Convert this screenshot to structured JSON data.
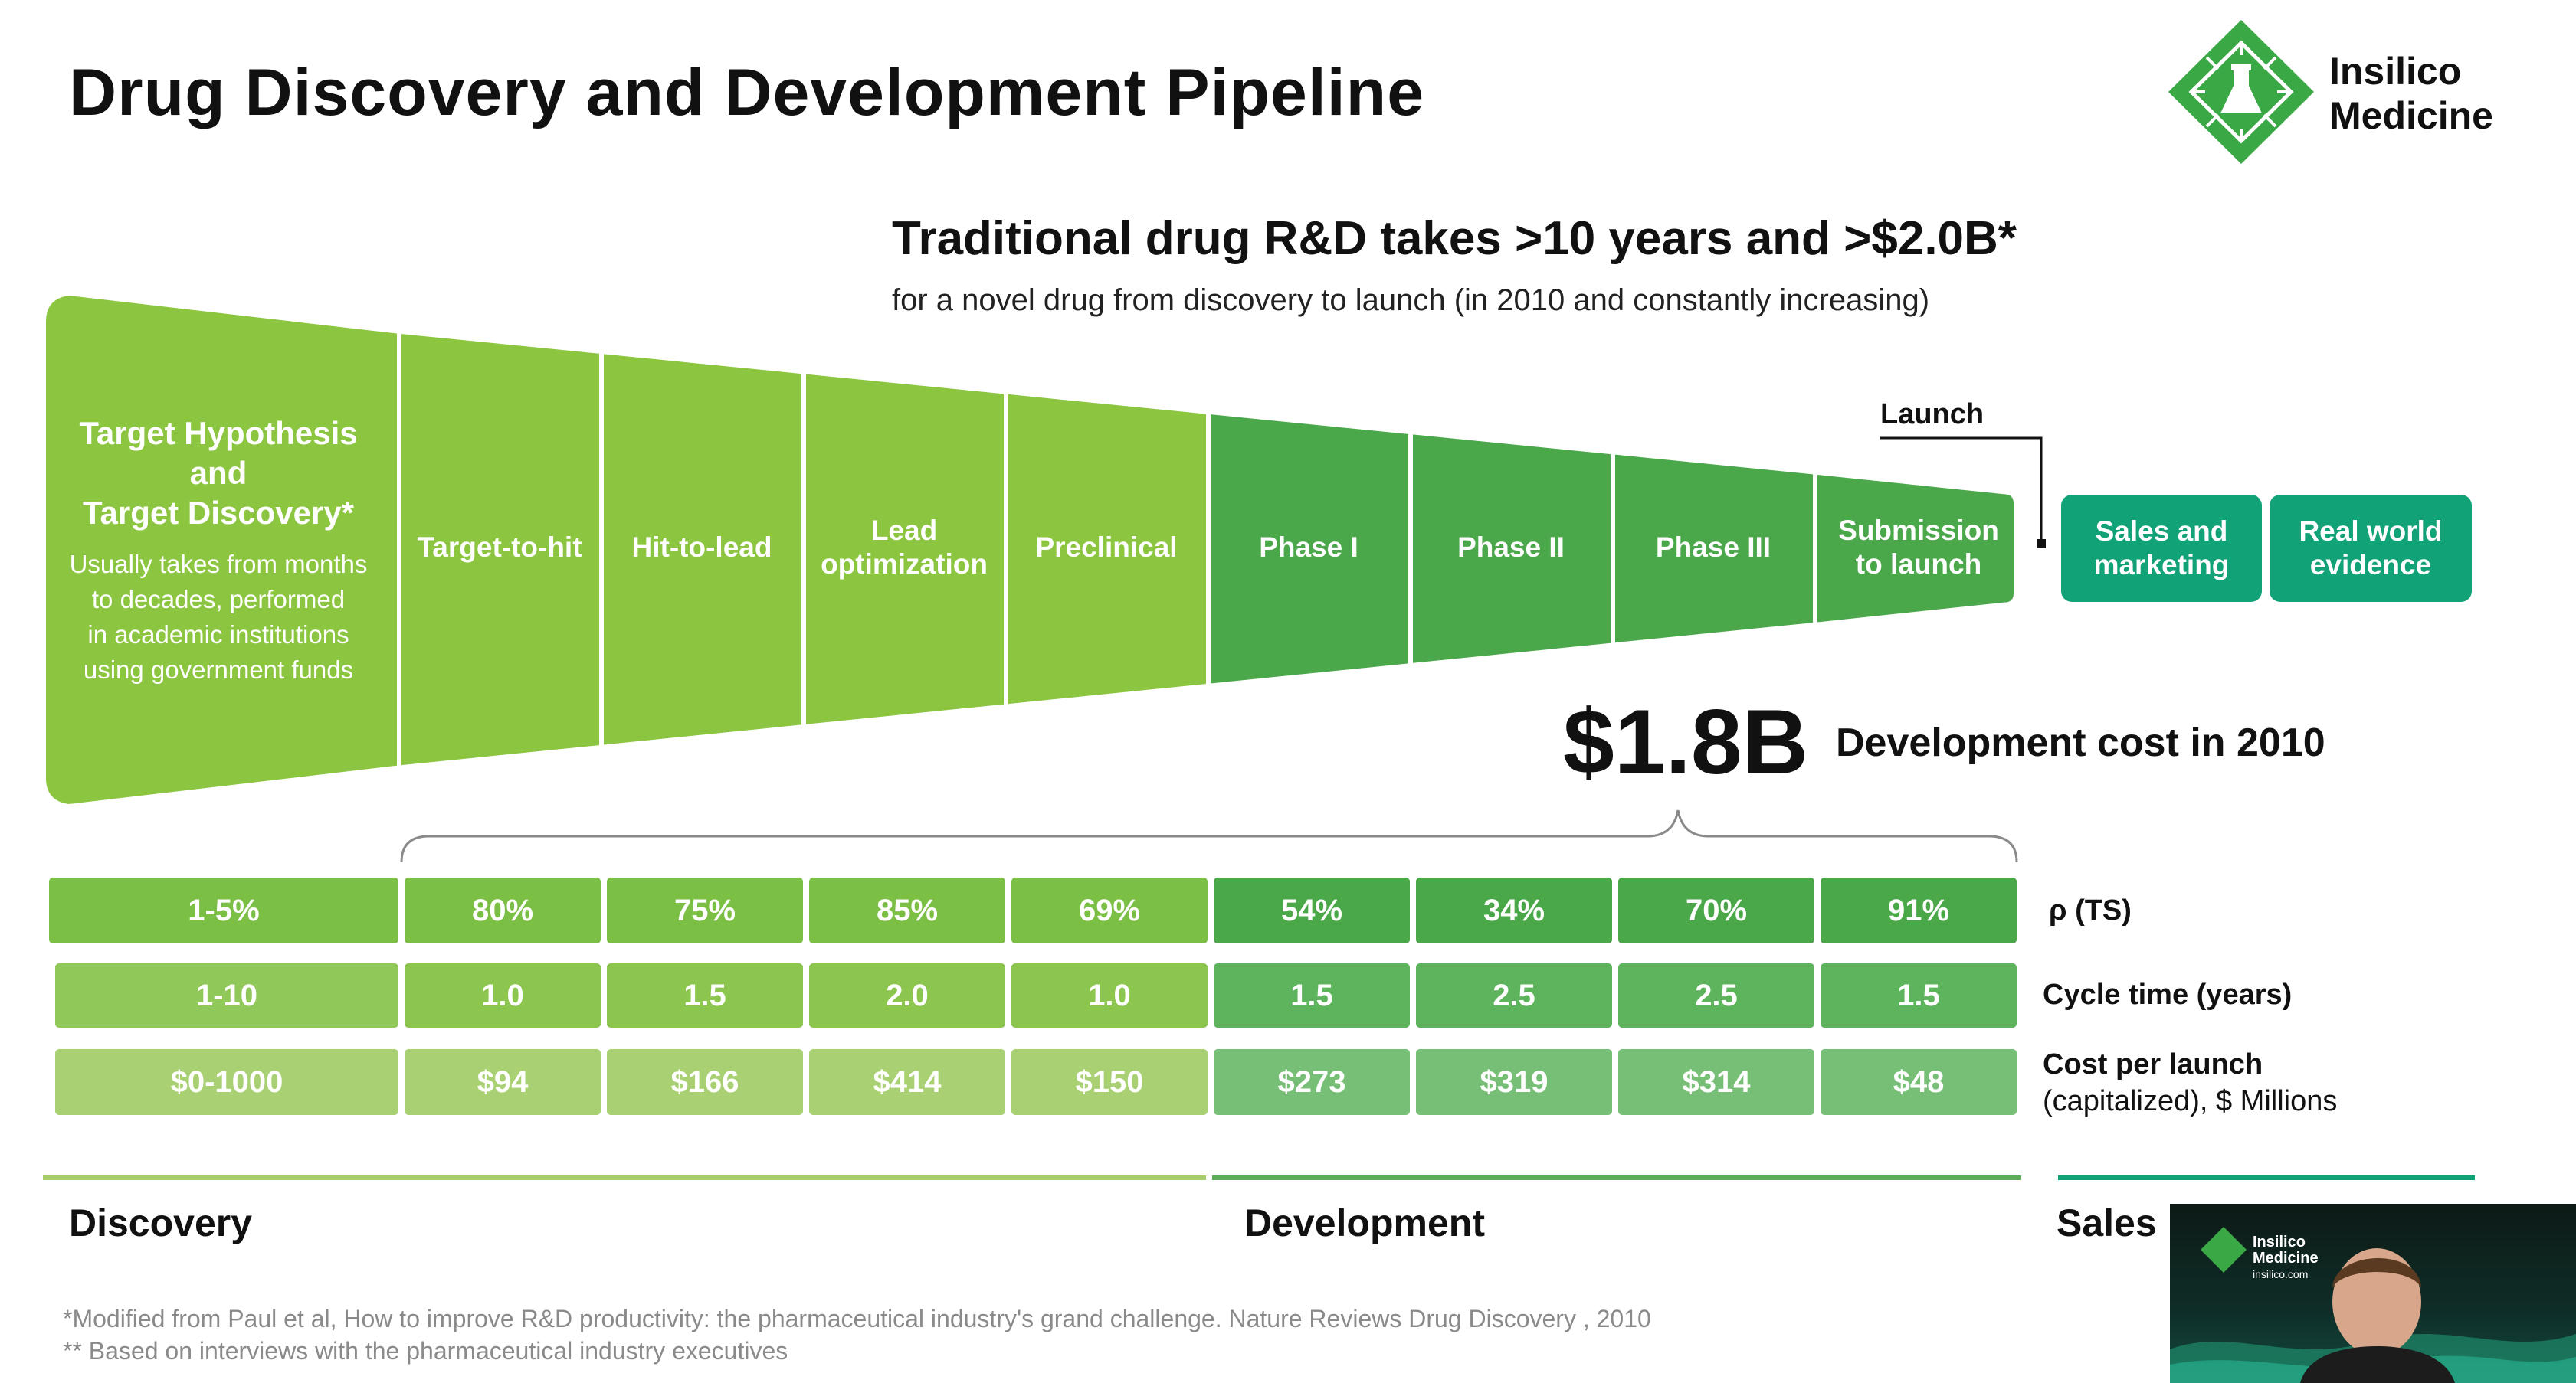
{
  "title": "Drug Discovery and Development Pipeline",
  "logo": {
    "name": "Insilico Medicine",
    "line1": "Insilico",
    "line2": "Medicine",
    "icon": "flask-chip-icon",
    "color": "#3aa845"
  },
  "headline": "Traditional drug R&D takes >10 years and >$2.0B*",
  "subheadline": "for a novel drug from discovery to launch (in 2010 and constantly increasing)",
  "funnel": {
    "first_stage": {
      "title_lines": [
        "Target Hypothesis",
        "and",
        "Target Discovery*"
      ],
      "desc_lines": [
        "Usually takes from months",
        "to decades, performed",
        "in academic institutions",
        "using government funds"
      ]
    },
    "stages": [
      {
        "lines": [
          "Target-to-hit"
        ]
      },
      {
        "lines": [
          "Hit-to-lead"
        ]
      },
      {
        "lines": [
          "Lead",
          "optimization"
        ]
      },
      {
        "lines": [
          "Preclinical"
        ]
      },
      {
        "lines": [
          "Phase I"
        ]
      },
      {
        "lines": [
          "Phase II"
        ]
      },
      {
        "lines": [
          "Phase III"
        ]
      },
      {
        "lines": [
          "Submission",
          "to launch"
        ]
      }
    ],
    "launch_label": "Launch",
    "post_launch": [
      {
        "lines": [
          "Sales and",
          "marketing"
        ]
      },
      {
        "lines": [
          "Real world",
          "evidence"
        ]
      }
    ],
    "colors": {
      "discovery": "#8cc640",
      "development": "#4ba84a",
      "sales": "#12a278"
    }
  },
  "cost": {
    "value": "$1.8B",
    "label": "Development cost in 2010"
  },
  "table": {
    "rows": [
      {
        "key": "pts",
        "label_bold": "ρ (TS)",
        "label_normal": "",
        "first": "1-5%",
        "values": [
          "80%",
          "75%",
          "85%",
          "69%",
          "54%",
          "34%",
          "70%",
          "91%"
        ]
      },
      {
        "key": "cycle",
        "label_bold": "Cycle time (years)",
        "label_normal": "",
        "first": "1-10",
        "values": [
          "1.0",
          "1.5",
          "2.0",
          "1.0",
          "1.5",
          "2.5",
          "2.5",
          "1.5"
        ]
      },
      {
        "key": "cost",
        "label_bold": "Cost per launch",
        "label_normal": "(capitalized), $ Millions",
        "first": "$0-1000",
        "values": [
          "$94",
          "$166",
          "$414",
          "$150",
          "$273",
          "$319",
          "$314",
          "$48"
        ]
      }
    ]
  },
  "sections": [
    "Discovery",
    "Development",
    "Sales"
  ],
  "footnotes": [
    "*Modified from Paul et al, How to improve R&D productivity: the pharmaceutical industry's grand challenge. Nature Reviews Drug Discovery , 2010",
    "** Based on interviews with the pharmaceutical industry executives"
  ],
  "webcam": {
    "logo_line1": "Insilico",
    "logo_line2": "Medicine",
    "logo_line3": "insilico.com"
  }
}
